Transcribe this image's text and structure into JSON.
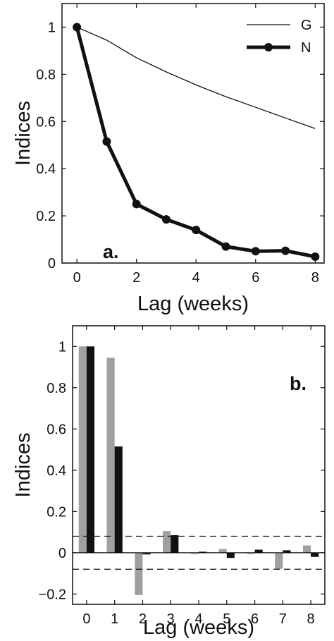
{
  "chart_data": [
    {
      "type": "line",
      "panel_label": "a.",
      "xlabel": "Lag (weeks)",
      "ylabel": "Indices",
      "xlim": [
        -0.5,
        8.3
      ],
      "ylim": [
        0,
        1.1
      ],
      "xticks": [
        0,
        2,
        4,
        6,
        8
      ],
      "xtick_labels": [
        "0",
        "2",
        "4",
        "6",
        "8"
      ],
      "yticks": [
        0,
        0.2,
        0.4,
        0.6,
        0.8,
        1
      ],
      "ytick_labels": [
        "0",
        "0.2",
        "0.4",
        "0.6",
        "0.8",
        "1"
      ],
      "legend_position": "top-right",
      "series": [
        {
          "name": "G",
          "color": "#111111",
          "style": "thin",
          "x": [
            0,
            1,
            2,
            3,
            4,
            5,
            6,
            7,
            8
          ],
          "values": [
            1.0,
            0.945,
            0.87,
            0.81,
            0.755,
            0.705,
            0.66,
            0.615,
            0.57
          ]
        },
        {
          "name": "N",
          "color": "#111111",
          "style": "thick-markers",
          "x": [
            0,
            1,
            2,
            3,
            4,
            5,
            6,
            7,
            8
          ],
          "values": [
            1.0,
            0.515,
            0.25,
            0.185,
            0.14,
            0.07,
            0.05,
            0.052,
            0.027
          ]
        }
      ]
    },
    {
      "type": "bar",
      "panel_label": "b.",
      "xlabel": "Lag (weeks)",
      "ylabel": "Indices",
      "categories": [
        "0",
        "1",
        "2",
        "3",
        "4",
        "5",
        "6",
        "7",
        "8"
      ],
      "ylim": [
        -0.25,
        1.1
      ],
      "yticks": [
        -0.2,
        0,
        0.2,
        0.4,
        0.6,
        0.8,
        1
      ],
      "ytick_labels": [
        "−0.2",
        "0",
        "0.2",
        "0.4",
        "0.6",
        "0.8",
        "1"
      ],
      "series": [
        {
          "color": "#a0a0a0",
          "values": [
            1.0,
            0.945,
            -0.205,
            0.105,
            -0.002,
            0.018,
            -0.002,
            -0.078,
            0.035
          ]
        },
        {
          "color": "#111111",
          "values": [
            1.0,
            0.515,
            -0.008,
            0.085,
            0.005,
            -0.025,
            0.015,
            0.012,
            -0.02
          ]
        }
      ],
      "threshold_lines": [
        0.08,
        -0.08
      ],
      "grid": false
    }
  ]
}
